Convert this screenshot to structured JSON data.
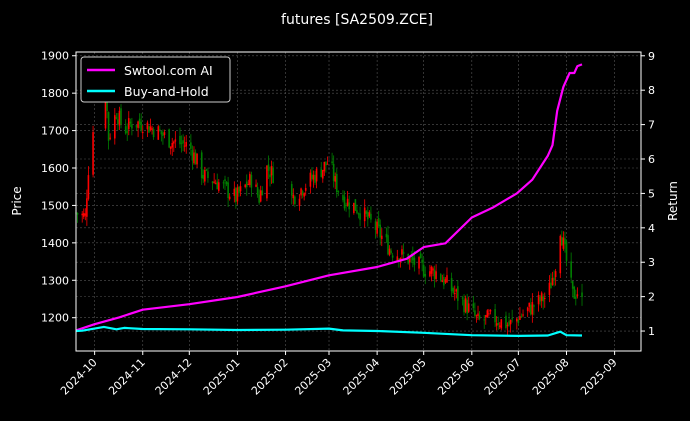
{
  "chart_data": {
    "type": "line",
    "title": "futures [SA2509.ZCE]",
    "ylabel_left": "Price",
    "ylabel_right": "Return",
    "xlim": [
      "2024-09-19",
      "2025-09-18"
    ],
    "ylim_left": [
      1111,
      1910
    ],
    "ylim_right": [
      0.42,
      9.11
    ],
    "x_ticks": [
      "2024-10",
      "2024-11",
      "2024-12",
      "2025-01",
      "2025-02",
      "2025-03",
      "2025-04",
      "2025-05",
      "2025-06",
      "2025-07",
      "2025-08",
      "2025-09"
    ],
    "y_ticks_left": [
      1200,
      1300,
      1400,
      1500,
      1600,
      1700,
      1800,
      1900
    ],
    "y_ticks_right": [
      1,
      2,
      3,
      4,
      5,
      6,
      7,
      8,
      9
    ],
    "grid": true,
    "legend_position": "top-left",
    "colors": {
      "strategy": "#ff00ff",
      "benchmark": "#00ffff",
      "up": "#ff0000",
      "down": "#008000"
    },
    "legend": [
      "Swtool.com AI",
      "Buy-and-Hold"
    ],
    "price_close": [
      [
        "2024-09-19",
        1480
      ],
      [
        "2024-09-25",
        1470
      ],
      [
        "2024-09-27",
        1600
      ],
      [
        "2024-09-30",
        1700
      ],
      [
        "2024-10-08",
        1820
      ],
      [
        "2024-10-10",
        1680
      ],
      [
        "2024-10-15",
        1750
      ],
      [
        "2024-10-20",
        1700
      ],
      [
        "2024-10-25",
        1720
      ],
      [
        "2024-11-01",
        1720
      ],
      [
        "2024-11-10",
        1700
      ],
      [
        "2024-11-20",
        1670
      ],
      [
        "2024-12-01",
        1660
      ],
      [
        "2024-12-10",
        1580
      ],
      [
        "2024-12-20",
        1560
      ],
      [
        "2024-12-31",
        1520
      ],
      [
        "2025-01-10",
        1570
      ],
      [
        "2025-01-15",
        1520
      ],
      [
        "2025-01-20",
        1600
      ],
      [
        "2025-01-25",
        1580
      ],
      [
        "2025-02-05",
        1520
      ],
      [
        "2025-02-15",
        1560
      ],
      [
        "2025-02-25",
        1600
      ],
      [
        "2025-03-01",
        1620
      ],
      [
        "2025-03-05",
        1560
      ],
      [
        "2025-03-10",
        1520
      ],
      [
        "2025-03-20",
        1490
      ],
      [
        "2025-03-31",
        1440
      ],
      [
        "2025-04-10",
        1380
      ],
      [
        "2025-04-20",
        1360
      ],
      [
        "2025-05-01",
        1330
      ],
      [
        "2025-05-10",
        1320
      ],
      [
        "2025-05-20",
        1270
      ],
      [
        "2025-05-31",
        1220
      ],
      [
        "2025-06-05",
        1190
      ],
      [
        "2025-06-15",
        1200
      ],
      [
        "2025-06-25",
        1180
      ],
      [
        "2025-07-01",
        1200
      ],
      [
        "2025-07-10",
        1230
      ],
      [
        "2025-07-20",
        1260
      ],
      [
        "2025-07-25",
        1340
      ],
      [
        "2025-07-28",
        1440
      ],
      [
        "2025-08-01",
        1350
      ],
      [
        "2025-08-05",
        1260
      ],
      [
        "2025-08-08",
        1270
      ],
      [
        "2025-08-11",
        1240
      ]
    ],
    "series": [
      {
        "name": "Swtool.com AI",
        "values": [
          [
            "2024-09-19",
            1.02
          ],
          [
            "2024-10-01",
            1.2
          ],
          [
            "2024-10-17",
            1.4
          ],
          [
            "2024-11-01",
            1.62
          ],
          [
            "2024-12-01",
            1.78
          ],
          [
            "2025-01-01",
            1.99
          ],
          [
            "2025-02-01",
            2.3
          ],
          [
            "2025-03-01",
            2.62
          ],
          [
            "2025-04-01",
            2.86
          ],
          [
            "2025-04-20",
            3.1
          ],
          [
            "2025-05-01",
            3.44
          ],
          [
            "2025-05-15",
            3.55
          ],
          [
            "2025-06-01",
            4.3
          ],
          [
            "2025-06-15",
            4.6
          ],
          [
            "2025-06-30",
            5.0
          ],
          [
            "2025-07-10",
            5.4
          ],
          [
            "2025-07-20",
            6.1
          ],
          [
            "2025-07-23",
            6.4
          ],
          [
            "2025-07-26",
            7.4
          ],
          [
            "2025-07-30",
            8.1
          ],
          [
            "2025-08-03",
            8.5
          ],
          [
            "2025-08-06",
            8.5
          ],
          [
            "2025-08-08",
            8.7
          ],
          [
            "2025-08-11",
            8.75
          ]
        ]
      },
      {
        "name": "Buy-and-Hold",
        "values": [
          [
            "2024-09-19",
            1.0
          ],
          [
            "2024-09-23",
            1.01
          ],
          [
            "2024-10-07",
            1.12
          ],
          [
            "2024-10-15",
            1.05
          ],
          [
            "2024-10-20",
            1.09
          ],
          [
            "2024-11-01",
            1.06
          ],
          [
            "2024-12-01",
            1.05
          ],
          [
            "2025-01-01",
            1.03
          ],
          [
            "2025-02-01",
            1.04
          ],
          [
            "2025-03-01",
            1.07
          ],
          [
            "2025-03-10",
            1.02
          ],
          [
            "2025-04-01",
            1.0
          ],
          [
            "2025-05-01",
            0.95
          ],
          [
            "2025-06-01",
            0.88
          ],
          [
            "2025-07-01",
            0.86
          ],
          [
            "2025-07-20",
            0.87
          ],
          [
            "2025-07-28",
            0.98
          ],
          [
            "2025-08-01",
            0.88
          ],
          [
            "2025-08-11",
            0.87
          ]
        ]
      }
    ]
  }
}
